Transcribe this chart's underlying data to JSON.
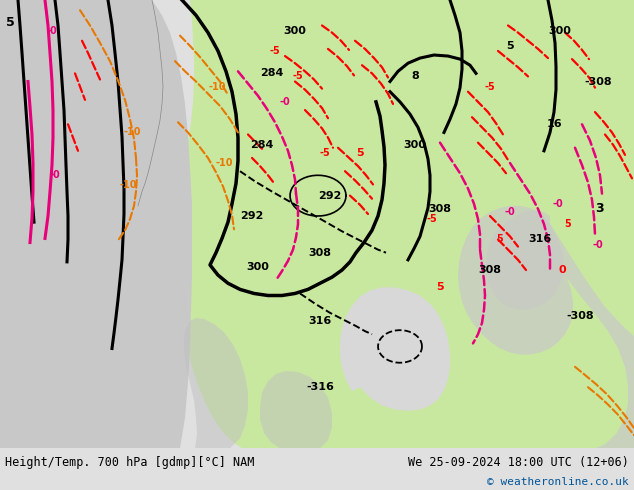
{
  "title_left": "Height/Temp. 700 hPa [gdmp][°C] NAM",
  "title_right": "We 25-09-2024 18:00 UTC (12+06)",
  "copyright": "© weatheronline.co.uk",
  "bg_color": "#e0e0e0",
  "map_bg_color": "#e0e0e0",
  "land_color": "#c8c8c8",
  "green_color": "#c8e8a0",
  "font_family": "DejaVu Sans",
  "bottom_bar_color": "#f0f0f0",
  "fig_width": 6.34,
  "fig_height": 4.9,
  "dpi": 100,
  "black_lw": 2.2,
  "red_lw": 1.6,
  "mag_lw": 1.8,
  "ora_lw": 1.5
}
